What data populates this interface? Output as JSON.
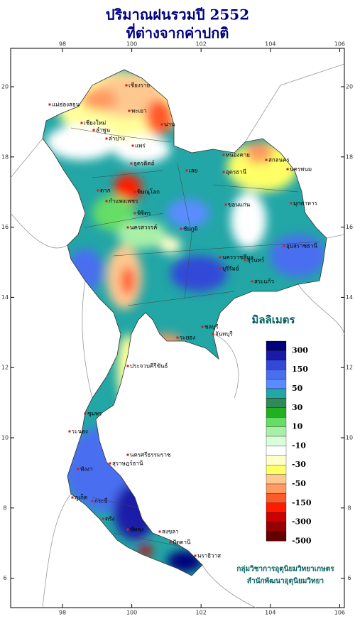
{
  "title": [
    "ปริมาณฝนรวมปี 2552",
    "ที่ต่างจากค่าปกติ"
  ],
  "map": {
    "lon_ticks": [
      98,
      100,
      102,
      104,
      106
    ],
    "lat_ticks": [
      20,
      18,
      16,
      14,
      12,
      10,
      8,
      6
    ],
    "places": [
      "เชียงราย",
      "แม่ฮ่องสอน",
      "เชียงใหม่",
      "ลำพูน",
      "พะเยา",
      "น่าน",
      "แพร่",
      "ลำปาง",
      "อุตรดิตถ์",
      "ตาก",
      "พิษณุโลก",
      "กำแพงเพชร",
      "พิจิตร",
      "นครสวรรค์",
      "หนองคาย",
      "อุดรธานี",
      "เลย",
      "สกลนคร",
      "นครพนม",
      "มุกดาหาร",
      "ขอนแก่น",
      "ชัยภูมิ",
      "นครราชสีมา",
      "บุรีรัมย์",
      "สุรินทร์",
      "อุบลราชธานี",
      "สระแก้ว",
      "ชลบุรี",
      "ระยอง",
      "จันทบุรี",
      "ประจวบคีรีขันธ์",
      "ชุมพร",
      "ระนอง",
      "สุราษฎร์ธานี",
      "นครศรีธรรมราช",
      "พังงา",
      "ภูเก็ต",
      "กระบี่",
      "ตรัง",
      "พัทลุง",
      "สงขลา",
      "ปัตตานี",
      "นราธิวาส"
    ]
  },
  "legend": {
    "title": "มิลลิเมตร",
    "labels": [
      300,
      150,
      50,
      30,
      10,
      -10,
      -30,
      -50,
      -150,
      -300,
      -500
    ],
    "colors": [
      "#00007a",
      "#1a1aa8",
      "#3348d8",
      "#4a6ef0",
      "#5a8cff",
      "#22a6a6",
      "#2e8b57",
      "#22b022",
      "#66dd66",
      "#a8f0a8",
      "#d8ffd8",
      "#ffffff",
      "#ffffc8",
      "#ffff66",
      "#ffc890",
      "#ff9a60",
      "#ff5a2a",
      "#ff1a00",
      "#cc0000",
      "#960000",
      "#640000"
    ]
  },
  "credits": [
    "กลุ่มวิชาการอุตุนิยมวิทยาเกษตร",
    "สำนักพัฒนาอุตุนิยมวิทยา"
  ]
}
